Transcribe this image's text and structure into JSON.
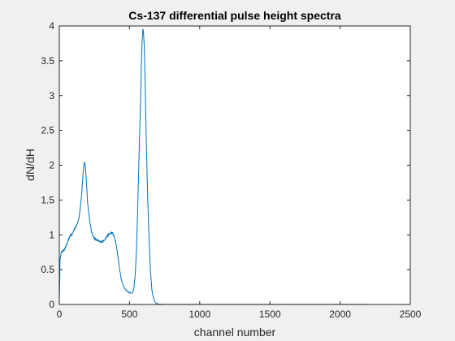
{
  "chart_data": {
    "type": "line",
    "title": "Cs-137 differential pulse height spectra",
    "xlabel": "channel number",
    "ylabel": "dN/dH",
    "xlim": [
      0,
      2500
    ],
    "ylim": [
      0,
      4
    ],
    "xticks": [
      0,
      500,
      1000,
      1500,
      2000,
      2500
    ],
    "yticks": [
      0,
      0.5,
      1,
      1.5,
      2,
      2.5,
      3,
      3.5,
      4
    ],
    "xtick_labels": [
      "0",
      "500",
      "1000",
      "1500",
      "2000",
      "2500"
    ],
    "ytick_labels": [
      "0",
      "0.5",
      "1",
      "1.5",
      "2",
      "2.5",
      "3",
      "3.5",
      "4"
    ],
    "grid": false,
    "box": true,
    "series": [
      {
        "color": "#0072BD",
        "x": [
          0,
          5,
          10,
          15,
          20,
          30,
          40,
          50,
          60,
          70,
          80,
          90,
          100,
          110,
          120,
          130,
          140,
          150,
          160,
          165,
          170,
          175,
          180,
          185,
          190,
          195,
          200,
          210,
          220,
          230,
          240,
          250,
          260,
          270,
          280,
          290,
          300,
          310,
          320,
          330,
          340,
          350,
          360,
          370,
          380,
          390,
          400,
          410,
          420,
          430,
          440,
          450,
          460,
          470,
          480,
          490,
          500,
          510,
          520,
          530,
          540,
          550,
          560,
          570,
          580,
          585,
          590,
          595,
          600,
          605,
          610,
          615,
          620,
          630,
          640,
          650,
          660,
          670,
          680,
          690,
          700,
          710,
          720,
          730,
          740,
          750,
          800,
          900,
          1000,
          1200,
          1500,
          1800,
          2000,
          2200
        ],
        "y": [
          0,
          0.62,
          0.72,
          0.75,
          0.76,
          0.78,
          0.8,
          0.85,
          0.9,
          0.95,
          1.0,
          1.0,
          1.05,
          1.1,
          1.12,
          1.18,
          1.25,
          1.4,
          1.6,
          1.75,
          1.9,
          2.0,
          2.05,
          2.0,
          1.85,
          1.7,
          1.5,
          1.3,
          1.15,
          1.05,
          0.98,
          0.95,
          0.93,
          0.92,
          0.91,
          0.9,
          0.9,
          0.91,
          0.93,
          0.95,
          0.98,
          1.0,
          1.02,
          1.03,
          1.02,
          0.98,
          0.9,
          0.8,
          0.65,
          0.5,
          0.38,
          0.3,
          0.25,
          0.22,
          0.2,
          0.18,
          0.17,
          0.16,
          0.17,
          0.22,
          0.4,
          0.8,
          1.5,
          2.3,
          3.0,
          3.5,
          3.8,
          3.95,
          3.9,
          3.7,
          3.3,
          2.8,
          2.3,
          1.5,
          0.9,
          0.45,
          0.2,
          0.1,
          0.04,
          0.02,
          0.01,
          0.005,
          0.004,
          0.003,
          0.003,
          0.002,
          0.002,
          0.002,
          0.002,
          0.002,
          0.002,
          0.002,
          0.002,
          0.002
        ]
      }
    ]
  }
}
